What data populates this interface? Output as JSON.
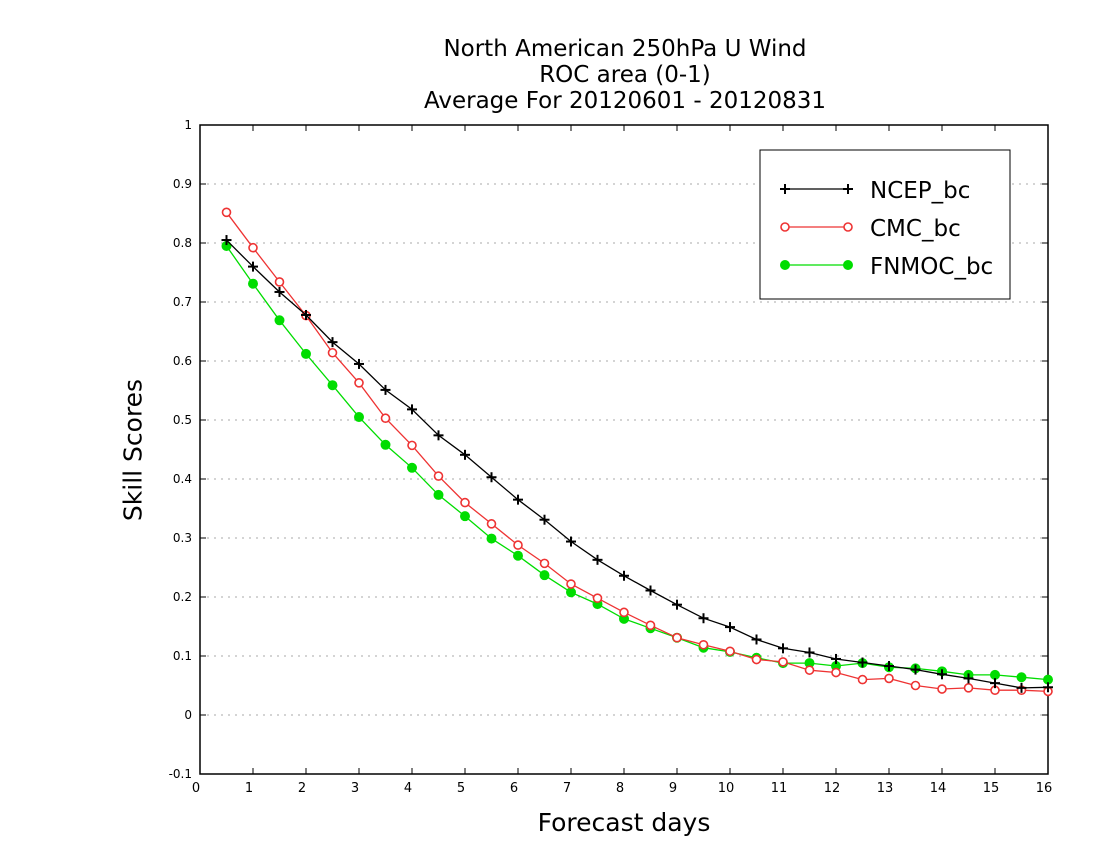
{
  "chart_data": {
    "type": "line",
    "title": "North American 250hPa U Wind",
    "subtitle_1": "ROC area (0-1)",
    "subtitle_2": "Average For 20120601 - 20120831",
    "xlabel": "Forecast days",
    "ylabel": "Skill Scores",
    "xlim": [
      0,
      16
    ],
    "ylim": [
      -0.1,
      1
    ],
    "x_ticks": [
      "0",
      "1",
      "2",
      "3",
      "4",
      "5",
      "6",
      "7",
      "8",
      "9",
      "10",
      "11",
      "12",
      "13",
      "14",
      "15",
      "16"
    ],
    "y_ticks": [
      "-0.1",
      "0",
      "0.1",
      "0.2",
      "0.3",
      "0.4",
      "0.5",
      "0.6",
      "0.7",
      "0.8",
      "0.9",
      "1"
    ],
    "grid": "dotted horizontal",
    "legend_position": "top-right",
    "x": [
      0.5,
      1,
      1.5,
      2,
      2.5,
      3,
      3.5,
      4,
      4.5,
      5,
      5.5,
      6,
      6.5,
      7,
      7.5,
      8,
      8.5,
      9,
      9.5,
      10,
      10.5,
      11,
      11.5,
      12,
      12.5,
      13,
      13.5,
      14,
      14.5,
      15,
      15.5,
      16
    ],
    "series": [
      {
        "name": "NCEP_bc",
        "color": "#000000",
        "marker": "plus",
        "values": [
          0.805,
          0.76,
          0.717,
          0.678,
          0.632,
          0.595,
          0.551,
          0.518,
          0.474,
          0.441,
          0.403,
          0.365,
          0.331,
          0.294,
          0.263,
          0.236,
          0.211,
          0.187,
          0.164,
          0.149,
          0.128,
          0.113,
          0.106,
          0.095,
          0.089,
          0.083,
          0.077,
          0.069,
          0.062,
          0.054,
          0.046,
          0.047
        ]
      },
      {
        "name": "CMC_bc",
        "color": "#ee3333",
        "marker": "open-circle",
        "values": [
          0.852,
          0.792,
          0.734,
          0.677,
          0.614,
          0.563,
          0.503,
          0.457,
          0.405,
          0.36,
          0.324,
          0.288,
          0.257,
          0.222,
          0.198,
          0.174,
          0.152,
          0.131,
          0.119,
          0.108,
          0.094,
          0.09,
          0.076,
          0.072,
          0.06,
          0.062,
          0.05,
          0.044,
          0.046,
          0.042,
          0.042,
          0.04
        ]
      },
      {
        "name": "FNMOC_bc",
        "color": "#00dd00",
        "marker": "filled-circle",
        "values": [
          0.795,
          0.731,
          0.669,
          0.612,
          0.559,
          0.505,
          0.458,
          0.419,
          0.373,
          0.337,
          0.299,
          0.27,
          0.237,
          0.208,
          0.188,
          0.163,
          0.147,
          0.131,
          0.114,
          0.107,
          0.097,
          0.088,
          0.088,
          0.083,
          0.088,
          0.081,
          0.079,
          0.074,
          0.068,
          0.068,
          0.064,
          0.06
        ]
      }
    ]
  }
}
